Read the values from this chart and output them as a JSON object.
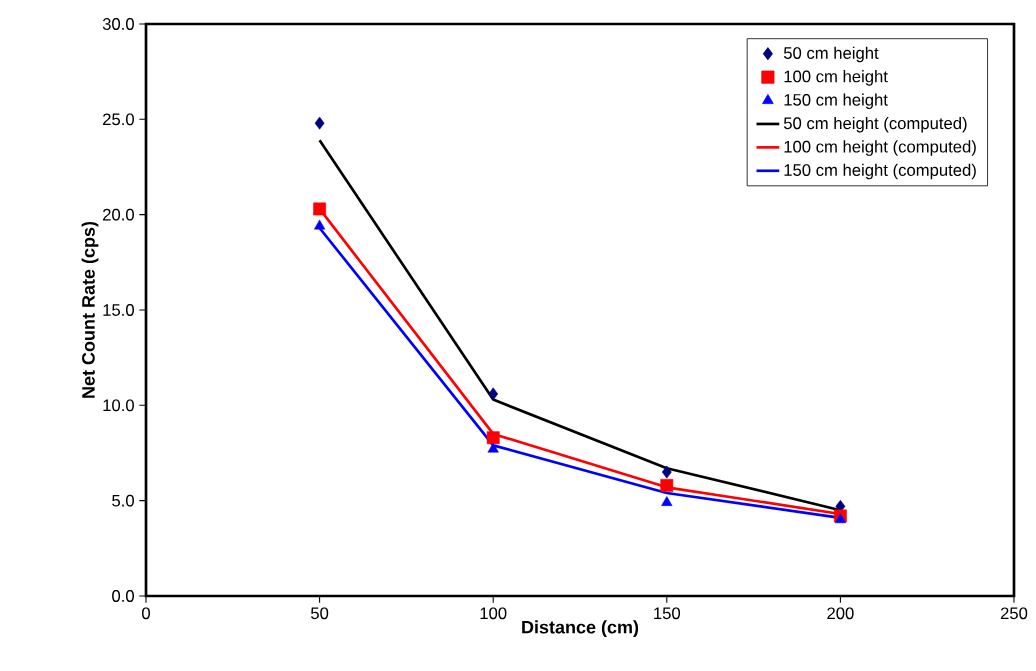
{
  "chart_data": {
    "type": "scatter",
    "xlabel": "Distance (cm)",
    "ylabel": "Net Count Rate (cps)",
    "x": [
      50,
      100,
      150,
      200
    ],
    "series": [
      {
        "name": "50 cm height",
        "marker": "diamond",
        "color": "#000080",
        "values": [
          24.8,
          10.6,
          6.5,
          4.7
        ]
      },
      {
        "name": "100 cm height",
        "marker": "square",
        "color": "#ff0000",
        "values": [
          20.3,
          8.3,
          5.8,
          4.2
        ]
      },
      {
        "name": "150 cm height",
        "marker": "triangle",
        "color": "#0000ff",
        "values": [
          19.4,
          7.7,
          4.9,
          4.0
        ]
      },
      {
        "name": "50 cm height (computed)",
        "type": "line",
        "marker": "none",
        "color": "#000000",
        "values": [
          23.9,
          10.3,
          6.7,
          4.5
        ]
      },
      {
        "name": "100 cm height (computed)",
        "type": "line",
        "marker": "none",
        "color": "#ff0000",
        "values": [
          20.3,
          8.5,
          5.7,
          4.3
        ]
      },
      {
        "name": "150 cm height (computed)",
        "type": "line",
        "marker": "none",
        "color": "#0000ff",
        "values": [
          19.3,
          7.9,
          5.4,
          4.1
        ]
      }
    ],
    "xlim": [
      0,
      250
    ],
    "xticks": [
      0,
      50,
      100,
      150,
      200,
      250
    ],
    "ylim": [
      0,
      30
    ],
    "yticks": [
      {
        "value": 0,
        "label": "0.0"
      },
      {
        "value": 5,
        "label": "5.0"
      },
      {
        "value": 10,
        "label": "10.0"
      },
      {
        "value": 15,
        "label": "15.0"
      },
      {
        "value": 20,
        "label": "20.0"
      },
      {
        "value": 25,
        "label": "25.0"
      },
      {
        "value": 30,
        "label": "30.0"
      }
    ],
    "grid": false,
    "legend": "top right"
  }
}
